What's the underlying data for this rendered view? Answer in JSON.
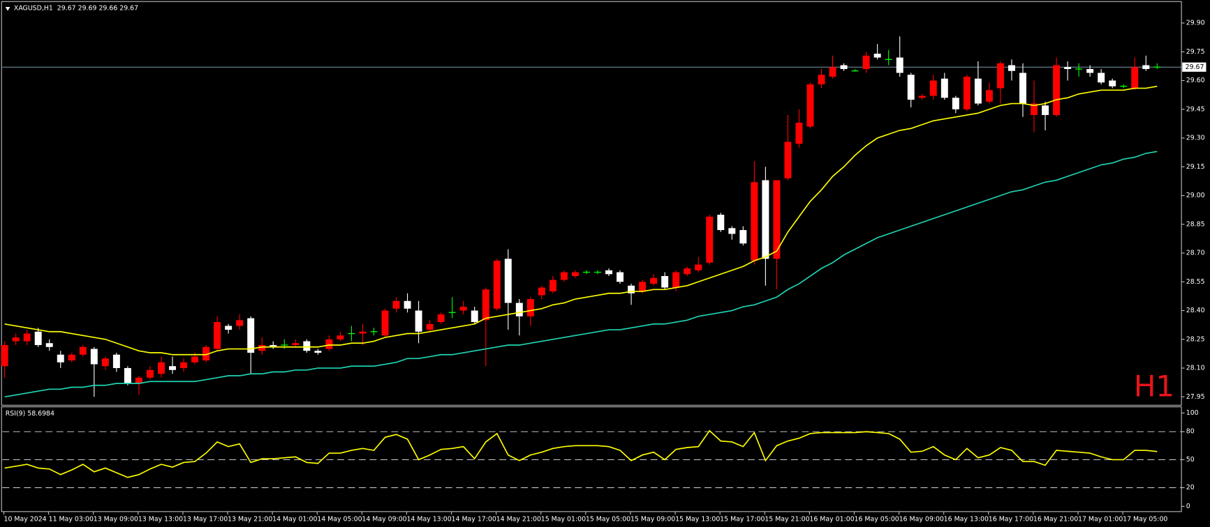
{
  "chart_data": [
    {
      "type": "candlestick",
      "title": "XAGUSD,H1  29.67 29.69 29.66 29.67",
      "annotation": "H1",
      "categories": [
        "10 May 2024",
        null,
        null,
        null,
        "11 May 03:00",
        null,
        null,
        null,
        "13 May 09:00",
        null,
        null,
        null,
        "13 May 13:00",
        null,
        null,
        null,
        "13 May 17:00",
        null,
        null,
        null,
        "13 May 21:00",
        null,
        null,
        null,
        "14 May 01:00",
        null,
        null,
        null,
        "14 May 05:00",
        null,
        null,
        null,
        "14 May 09:00",
        null,
        null,
        null,
        "14 May 13:00",
        null,
        null,
        null,
        "14 May 17:00",
        null,
        null,
        null,
        "14 May 21:00",
        null,
        null,
        null,
        "15 May 01:00",
        null,
        null,
        null,
        "15 May 05:00",
        null,
        null,
        null,
        "15 May 09:00",
        null,
        null,
        null,
        "15 May 13:00",
        null,
        null,
        null,
        "15 May 17:00",
        null,
        null,
        null,
        "15 May 21:00",
        null,
        null,
        null,
        "16 May 01:00",
        null,
        null,
        null,
        "16 May 05:00",
        null,
        null,
        null,
        "16 May 09:00",
        null,
        null,
        null,
        "16 May 13:00",
        null,
        null,
        null,
        "16 May 17:00",
        null,
        null,
        null,
        "16 May 21:00",
        null,
        null,
        null,
        "17 May 01:00",
        null,
        null,
        null,
        "17 May 05:00",
        null,
        null,
        null
      ],
      "open": [
        28.11,
        28.24,
        28.24,
        28.29,
        28.23,
        28.17,
        28.14,
        28.17,
        28.2,
        28.11,
        28.17,
        28.1,
        28.02,
        28.05,
        28.07,
        28.11,
        28.1,
        28.13,
        28.14,
        28.2,
        28.32,
        28.32,
        28.36,
        28.19,
        28.22,
        28.22,
        28.22,
        28.24,
        28.19,
        28.2,
        28.25,
        28.28,
        28.28,
        28.29,
        28.27,
        28.41,
        28.45,
        28.4,
        28.3,
        28.34,
        28.39,
        28.4,
        28.4,
        28.35,
        28.41,
        28.67,
        28.44,
        28.37,
        28.48,
        28.5,
        28.56,
        28.58,
        28.6,
        28.6,
        28.61,
        28.6,
        28.53,
        28.5,
        28.54,
        28.58,
        28.52,
        28.59,
        28.61,
        28.65,
        28.9,
        28.83,
        28.82,
        28.66,
        29.08,
        28.67,
        29.09,
        29.27,
        29.36,
        29.58,
        29.62,
        29.68,
        29.65,
        29.66,
        29.74,
        29.71,
        29.72,
        29.63,
        29.51,
        29.52,
        29.61,
        29.51,
        29.45,
        29.61,
        29.49,
        29.56,
        29.68,
        29.64,
        29.42,
        29.47,
        29.42,
        29.67,
        29.66,
        29.66,
        29.64,
        29.6,
        29.57,
        29.56,
        29.68,
        29.67
      ],
      "high": [
        28.24,
        28.28,
        28.3,
        28.31,
        28.25,
        28.19,
        28.18,
        28.22,
        28.21,
        28.16,
        28.18,
        28.11,
        28.06,
        28.11,
        28.16,
        28.16,
        28.15,
        28.18,
        28.22,
        28.37,
        28.33,
        28.38,
        28.37,
        28.26,
        28.24,
        28.25,
        28.25,
        28.25,
        28.2,
        28.27,
        28.29,
        28.32,
        28.33,
        28.31,
        28.41,
        28.47,
        28.49,
        28.45,
        28.35,
        28.39,
        28.47,
        28.45,
        28.42,
        28.52,
        28.67,
        28.72,
        28.46,
        28.47,
        28.53,
        28.58,
        28.61,
        28.61,
        28.61,
        28.61,
        28.62,
        28.61,
        28.54,
        28.56,
        28.59,
        28.6,
        28.61,
        28.63,
        28.68,
        28.9,
        28.91,
        28.84,
        28.84,
        29.18,
        29.15,
        29.08,
        29.42,
        29.45,
        29.59,
        29.66,
        29.73,
        29.69,
        29.66,
        29.75,
        29.79,
        29.76,
        29.83,
        29.64,
        29.53,
        29.63,
        29.64,
        29.52,
        29.63,
        29.7,
        29.59,
        29.7,
        29.71,
        29.69,
        29.6,
        29.49,
        29.72,
        29.7,
        29.69,
        29.68,
        29.66,
        29.61,
        29.58,
        29.72,
        29.73,
        29.69
      ],
      "low": [
        28.05,
        28.22,
        28.22,
        28.21,
        28.19,
        28.1,
        28.13,
        28.16,
        27.95,
        28.09,
        28.08,
        28.01,
        27.96,
        28.04,
        28.05,
        28.07,
        28.08,
        28.12,
        28.13,
        28.19,
        28.28,
        28.3,
        28.07,
        28.17,
        28.2,
        28.2,
        28.21,
        28.18,
        28.17,
        28.19,
        28.24,
        28.24,
        28.22,
        28.27,
        28.26,
        28.39,
        28.39,
        28.23,
        28.29,
        28.33,
        28.36,
        28.38,
        28.33,
        28.11,
        28.4,
        28.3,
        28.27,
        28.32,
        28.46,
        28.49,
        28.55,
        28.57,
        28.59,
        28.59,
        28.58,
        28.54,
        28.43,
        28.49,
        28.53,
        28.51,
        28.5,
        28.58,
        28.6,
        28.64,
        28.81,
        28.77,
        28.74,
        28.64,
        28.53,
        28.51,
        29.08,
        29.25,
        29.35,
        29.56,
        29.61,
        29.65,
        29.65,
        29.64,
        29.71,
        29.68,
        29.62,
        29.46,
        29.5,
        29.5,
        29.5,
        29.43,
        29.44,
        29.47,
        29.48,
        29.48,
        29.6,
        29.41,
        29.33,
        29.34,
        29.41,
        29.6,
        29.62,
        29.62,
        29.58,
        29.56,
        29.56,
        29.55,
        29.65,
        29.66
      ],
      "close": [
        28.22,
        28.26,
        28.28,
        28.22,
        28.21,
        28.13,
        28.17,
        28.21,
        28.12,
        28.15,
        28.1,
        28.02,
        28.05,
        28.09,
        28.13,
        28.09,
        28.13,
        28.16,
        28.21,
        28.34,
        28.3,
        28.35,
        28.18,
        28.22,
        28.21,
        28.22,
        28.23,
        28.19,
        28.18,
        28.25,
        28.27,
        28.28,
        28.29,
        28.29,
        28.4,
        28.45,
        28.41,
        28.29,
        28.33,
        28.38,
        28.39,
        28.42,
        28.34,
        28.51,
        28.66,
        28.44,
        28.37,
        28.46,
        28.52,
        28.56,
        28.6,
        28.6,
        28.6,
        28.6,
        28.59,
        28.55,
        28.49,
        28.55,
        28.57,
        28.52,
        28.6,
        28.62,
        28.64,
        28.89,
        28.82,
        28.8,
        28.75,
        29.07,
        28.67,
        29.08,
        29.28,
        29.38,
        29.58,
        29.63,
        29.67,
        29.66,
        29.65,
        29.73,
        29.72,
        29.71,
        29.64,
        29.5,
        29.52,
        29.6,
        29.51,
        29.45,
        29.62,
        29.48,
        29.55,
        29.69,
        29.65,
        29.48,
        29.48,
        29.42,
        29.68,
        29.66,
        29.66,
        29.64,
        29.59,
        29.57,
        29.57,
        29.67,
        29.66,
        29.67
      ],
      "up_color": "#ff0000",
      "down_color": "#ffffff",
      "doji_color": "#00ff00",
      "series": [
        {
          "color": "#ffff00",
          "values": [
            28.33,
            28.32,
            28.31,
            28.3,
            28.29,
            28.29,
            28.28,
            28.27,
            28.26,
            28.25,
            28.23,
            28.21,
            28.19,
            28.18,
            28.18,
            28.17,
            28.17,
            28.17,
            28.17,
            28.19,
            28.2,
            28.2,
            28.2,
            28.21,
            28.21,
            28.21,
            28.21,
            28.21,
            28.21,
            28.22,
            28.22,
            28.23,
            28.23,
            28.24,
            28.26,
            28.27,
            28.28,
            28.28,
            28.29,
            28.3,
            28.31,
            28.32,
            28.33,
            28.36,
            28.37,
            28.38,
            28.39,
            28.4,
            28.41,
            28.43,
            28.44,
            28.46,
            28.47,
            28.48,
            28.49,
            28.49,
            28.5,
            28.5,
            28.51,
            28.51,
            28.52,
            28.53,
            28.55,
            28.57,
            28.59,
            28.61,
            28.63,
            28.66,
            28.68,
            28.71,
            28.81,
            28.89,
            28.97,
            29.03,
            29.1,
            29.15,
            29.21,
            29.26,
            29.3,
            29.32,
            29.34,
            29.35,
            29.37,
            29.39,
            29.4,
            29.41,
            29.42,
            29.43,
            29.45,
            29.47,
            29.48,
            29.48,
            29.47,
            29.48,
            29.5,
            29.51,
            29.53,
            29.54,
            29.55,
            29.55,
            29.55,
            29.56,
            29.56,
            29.57
          ]
        },
        {
          "color": "#1fd6b4",
          "values": [
            27.95,
            27.96,
            27.97,
            27.98,
            27.99,
            27.99,
            28.0,
            28.0,
            28.01,
            28.01,
            28.02,
            28.02,
            28.02,
            28.03,
            28.03,
            28.03,
            28.03,
            28.03,
            28.04,
            28.05,
            28.06,
            28.06,
            28.07,
            28.07,
            28.08,
            28.08,
            28.09,
            28.09,
            28.1,
            28.1,
            28.1,
            28.11,
            28.11,
            28.11,
            28.12,
            28.13,
            28.15,
            28.15,
            28.16,
            28.17,
            28.17,
            28.18,
            28.19,
            28.2,
            28.21,
            28.22,
            28.22,
            28.23,
            28.24,
            28.25,
            28.26,
            28.27,
            28.28,
            28.29,
            28.3,
            28.3,
            28.31,
            28.32,
            28.33,
            28.33,
            28.34,
            28.35,
            28.37,
            28.38,
            28.39,
            28.4,
            28.42,
            28.43,
            28.45,
            28.47,
            28.51,
            28.54,
            28.58,
            28.62,
            28.65,
            28.69,
            28.72,
            28.75,
            28.78,
            28.8,
            28.82,
            28.84,
            28.86,
            28.88,
            28.9,
            28.92,
            28.94,
            28.96,
            28.98,
            29.0,
            29.02,
            29.03,
            29.05,
            29.07,
            29.08,
            29.1,
            29.12,
            29.14,
            29.16,
            29.17,
            29.19,
            29.2,
            29.22,
            29.23
          ]
        }
      ],
      "last_price": 29.67,
      "ylim": [
        27.91,
        30.0
      ],
      "yticks": [
        27.95,
        {
          "value": 28.1,
          "label": "28.10"
        },
        28.25,
        {
          "value": 28.4,
          "label": "28.40"
        },
        28.55,
        {
          "value": 28.7,
          "label": "28.70"
        },
        28.85,
        {
          "value": 29.0,
          "label": "29.00"
        },
        29.15,
        {
          "value": 29.3,
          "label": "29.30"
        },
        29.45,
        {
          "value": 29.6,
          "label": "29.60"
        },
        29.75,
        {
          "value": 29.9,
          "label": "29.90"
        }
      ]
    },
    {
      "type": "line",
      "title": "RSI(9) 58.6984",
      "series": [
        {
          "color": "#ffff00",
          "values": [
            41,
            43,
            45,
            41,
            40,
            34,
            39,
            45,
            37,
            41,
            36,
            31,
            34,
            40,
            45,
            42,
            47,
            48,
            57,
            69,
            64,
            67,
            47,
            51,
            51,
            52,
            53,
            47,
            46,
            57,
            57,
            60,
            62,
            60,
            74,
            77,
            72,
            50,
            55,
            61,
            62,
            64,
            51,
            69,
            78,
            55,
            49,
            55,
            58,
            62,
            64,
            65,
            65,
            65,
            64,
            60,
            49,
            55,
            58,
            50,
            61,
            63,
            64,
            81,
            70,
            69,
            64,
            79,
            49,
            65,
            70,
            73,
            78,
            79,
            79,
            79,
            79,
            80,
            79,
            78,
            72,
            58,
            59,
            64,
            55,
            50,
            62,
            52,
            55,
            63,
            60,
            48,
            48,
            44,
            60,
            59,
            58,
            57,
            53,
            50,
            50,
            60,
            60,
            58.6984
          ]
        }
      ],
      "levels": [
        20,
        50,
        80
      ],
      "ylim": [
        -4,
        105
      ],
      "yticks": [
        0,
        20,
        50,
        80,
        100
      ]
    }
  ]
}
